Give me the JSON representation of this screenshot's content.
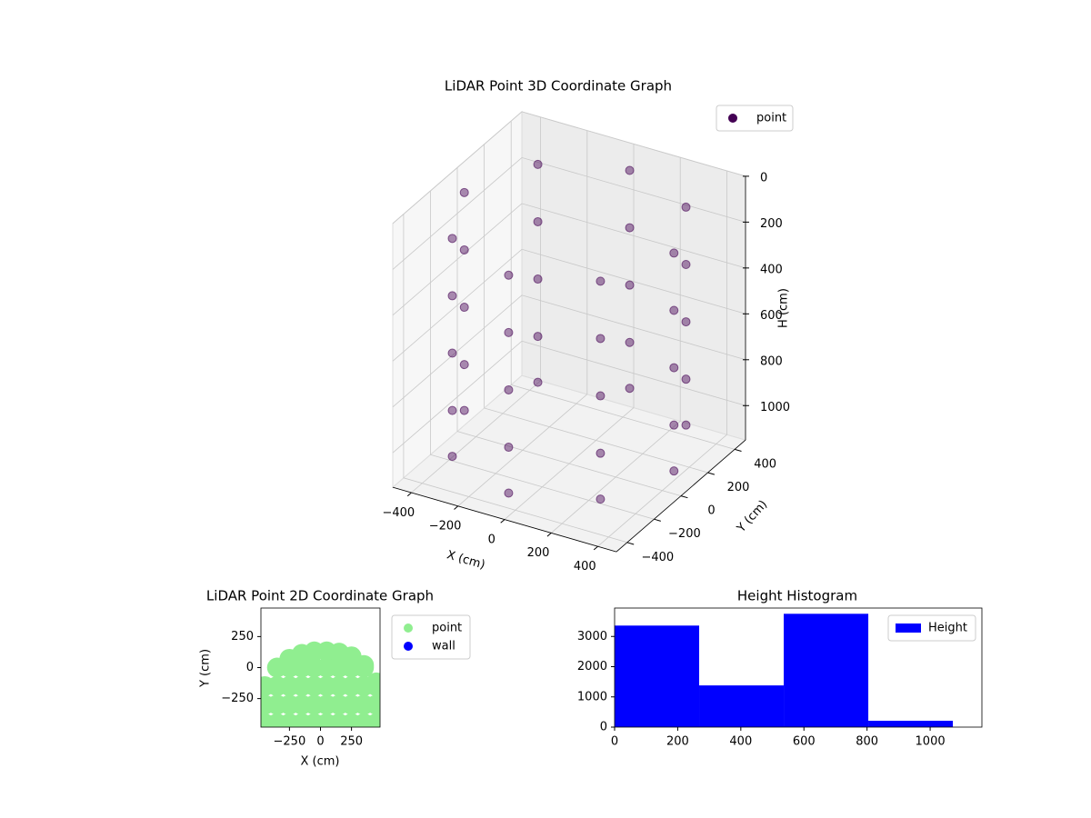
{
  "chart_data": [
    {
      "type": "scatter3d",
      "title": "LiDAR Point 3D Coordinate Graph",
      "xlabel": "X (cm)",
      "ylabel": "Y (cm)",
      "zlabel": "H (cm)",
      "xlim": [
        -480,
        480
      ],
      "ylim": [
        -480,
        480
      ],
      "zlim": [
        1150,
        0
      ],
      "xticks": [
        {
          "value": -400,
          "label": "−400"
        },
        {
          "value": -200,
          "label": "−200"
        },
        0,
        200,
        400
      ],
      "yticks": [
        {
          "value": -400,
          "label": "−400"
        },
        {
          "value": -200,
          "label": "−200"
        },
        0,
        200,
        400
      ],
      "zticks": [
        0,
        200,
        400,
        600,
        800,
        1000
      ],
      "grid": true,
      "legend": "upper right",
      "series": [
        {
          "name": "point",
          "color": "#440154",
          "x": [
            450,
            318,
            0,
            -318,
            -450,
            -318,
            0,
            318,
            450,
            318,
            0,
            -318,
            -450,
            -318,
            0,
            318,
            450,
            318,
            0,
            -318,
            -450,
            -318,
            0,
            318,
            450,
            318,
            0,
            -318,
            -450,
            -318,
            0,
            318,
            450,
            318,
            0,
            -318,
            -450,
            -318,
            0,
            318
          ],
          "y": [
            0,
            318,
            450,
            318,
            0,
            -318,
            -450,
            -318,
            0,
            318,
            450,
            318,
            0,
            -318,
            -450,
            -318,
            0,
            318,
            450,
            318,
            0,
            -318,
            -450,
            -318,
            0,
            318,
            450,
            318,
            0,
            -318,
            -450,
            -318,
            0,
            318,
            450,
            318,
            0,
            -318,
            -450,
            -318
          ],
          "z": [
            100,
            100,
            100,
            100,
            100,
            100,
            100,
            100,
            350,
            350,
            350,
            350,
            350,
            350,
            350,
            350,
            600,
            600,
            600,
            600,
            600,
            600,
            600,
            600,
            850,
            850,
            850,
            850,
            850,
            850,
            850,
            850,
            1050,
            1050,
            1050,
            1050,
            1050,
            1050,
            1050,
            1050
          ]
        }
      ]
    },
    {
      "type": "scatter",
      "title": "LiDAR Point 2D Coordinate Graph",
      "xlabel": "X (cm)",
      "ylabel": "Y (cm)",
      "xlim": [
        -480,
        480
      ],
      "ylim": [
        -480,
        480
      ],
      "xticks": [
        {
          "value": -250,
          "label": "−250"
        },
        0,
        250
      ],
      "yticks": [
        {
          "value": -250,
          "label": "−250"
        },
        0,
        250
      ],
      "legend": "outside right",
      "series": [
        {
          "name": "point",
          "color": "#90ee90",
          "x": [
            -450,
            -450,
            -450,
            -350,
            -350,
            -350,
            -350,
            -250,
            -250,
            -250,
            -250,
            -250,
            -150,
            -150,
            -150,
            -150,
            -150,
            -50,
            -50,
            -50,
            -50,
            -50,
            50,
            50,
            50,
            50,
            50,
            150,
            150,
            150,
            150,
            150,
            250,
            250,
            250,
            250,
            250,
            350,
            350,
            350,
            350,
            350,
            450,
            450,
            450,
            450
          ],
          "y": [
            -450,
            -300,
            -150,
            -450,
            -300,
            -150,
            0,
            -450,
            -300,
            -150,
            0,
            70,
            -450,
            -300,
            -150,
            0,
            110,
            -450,
            -300,
            -150,
            0,
            130,
            -450,
            -300,
            -150,
            0,
            130,
            -450,
            -300,
            -150,
            0,
            120,
            -450,
            -300,
            -150,
            0,
            90,
            -450,
            -300,
            -150,
            0,
            20,
            -450,
            -300,
            -150,
            -120
          ]
        },
        {
          "name": "wall",
          "color": "#0000ff",
          "x": [],
          "y": []
        }
      ]
    },
    {
      "type": "histogram",
      "title": "Height Histogram",
      "bins": [
        0,
        268,
        536,
        804,
        1072
      ],
      "counts": [
        3360,
        1380,
        3750,
        210
      ],
      "name": "Height",
      "color": "#0000ff",
      "xlim": [
        0,
        1164
      ],
      "ylim": [
        0,
        3940
      ],
      "xticks": [
        0,
        200,
        400,
        600,
        800,
        1000
      ],
      "yticks": [
        0,
        1000,
        2000,
        3000
      ],
      "legend": "upper right"
    }
  ]
}
